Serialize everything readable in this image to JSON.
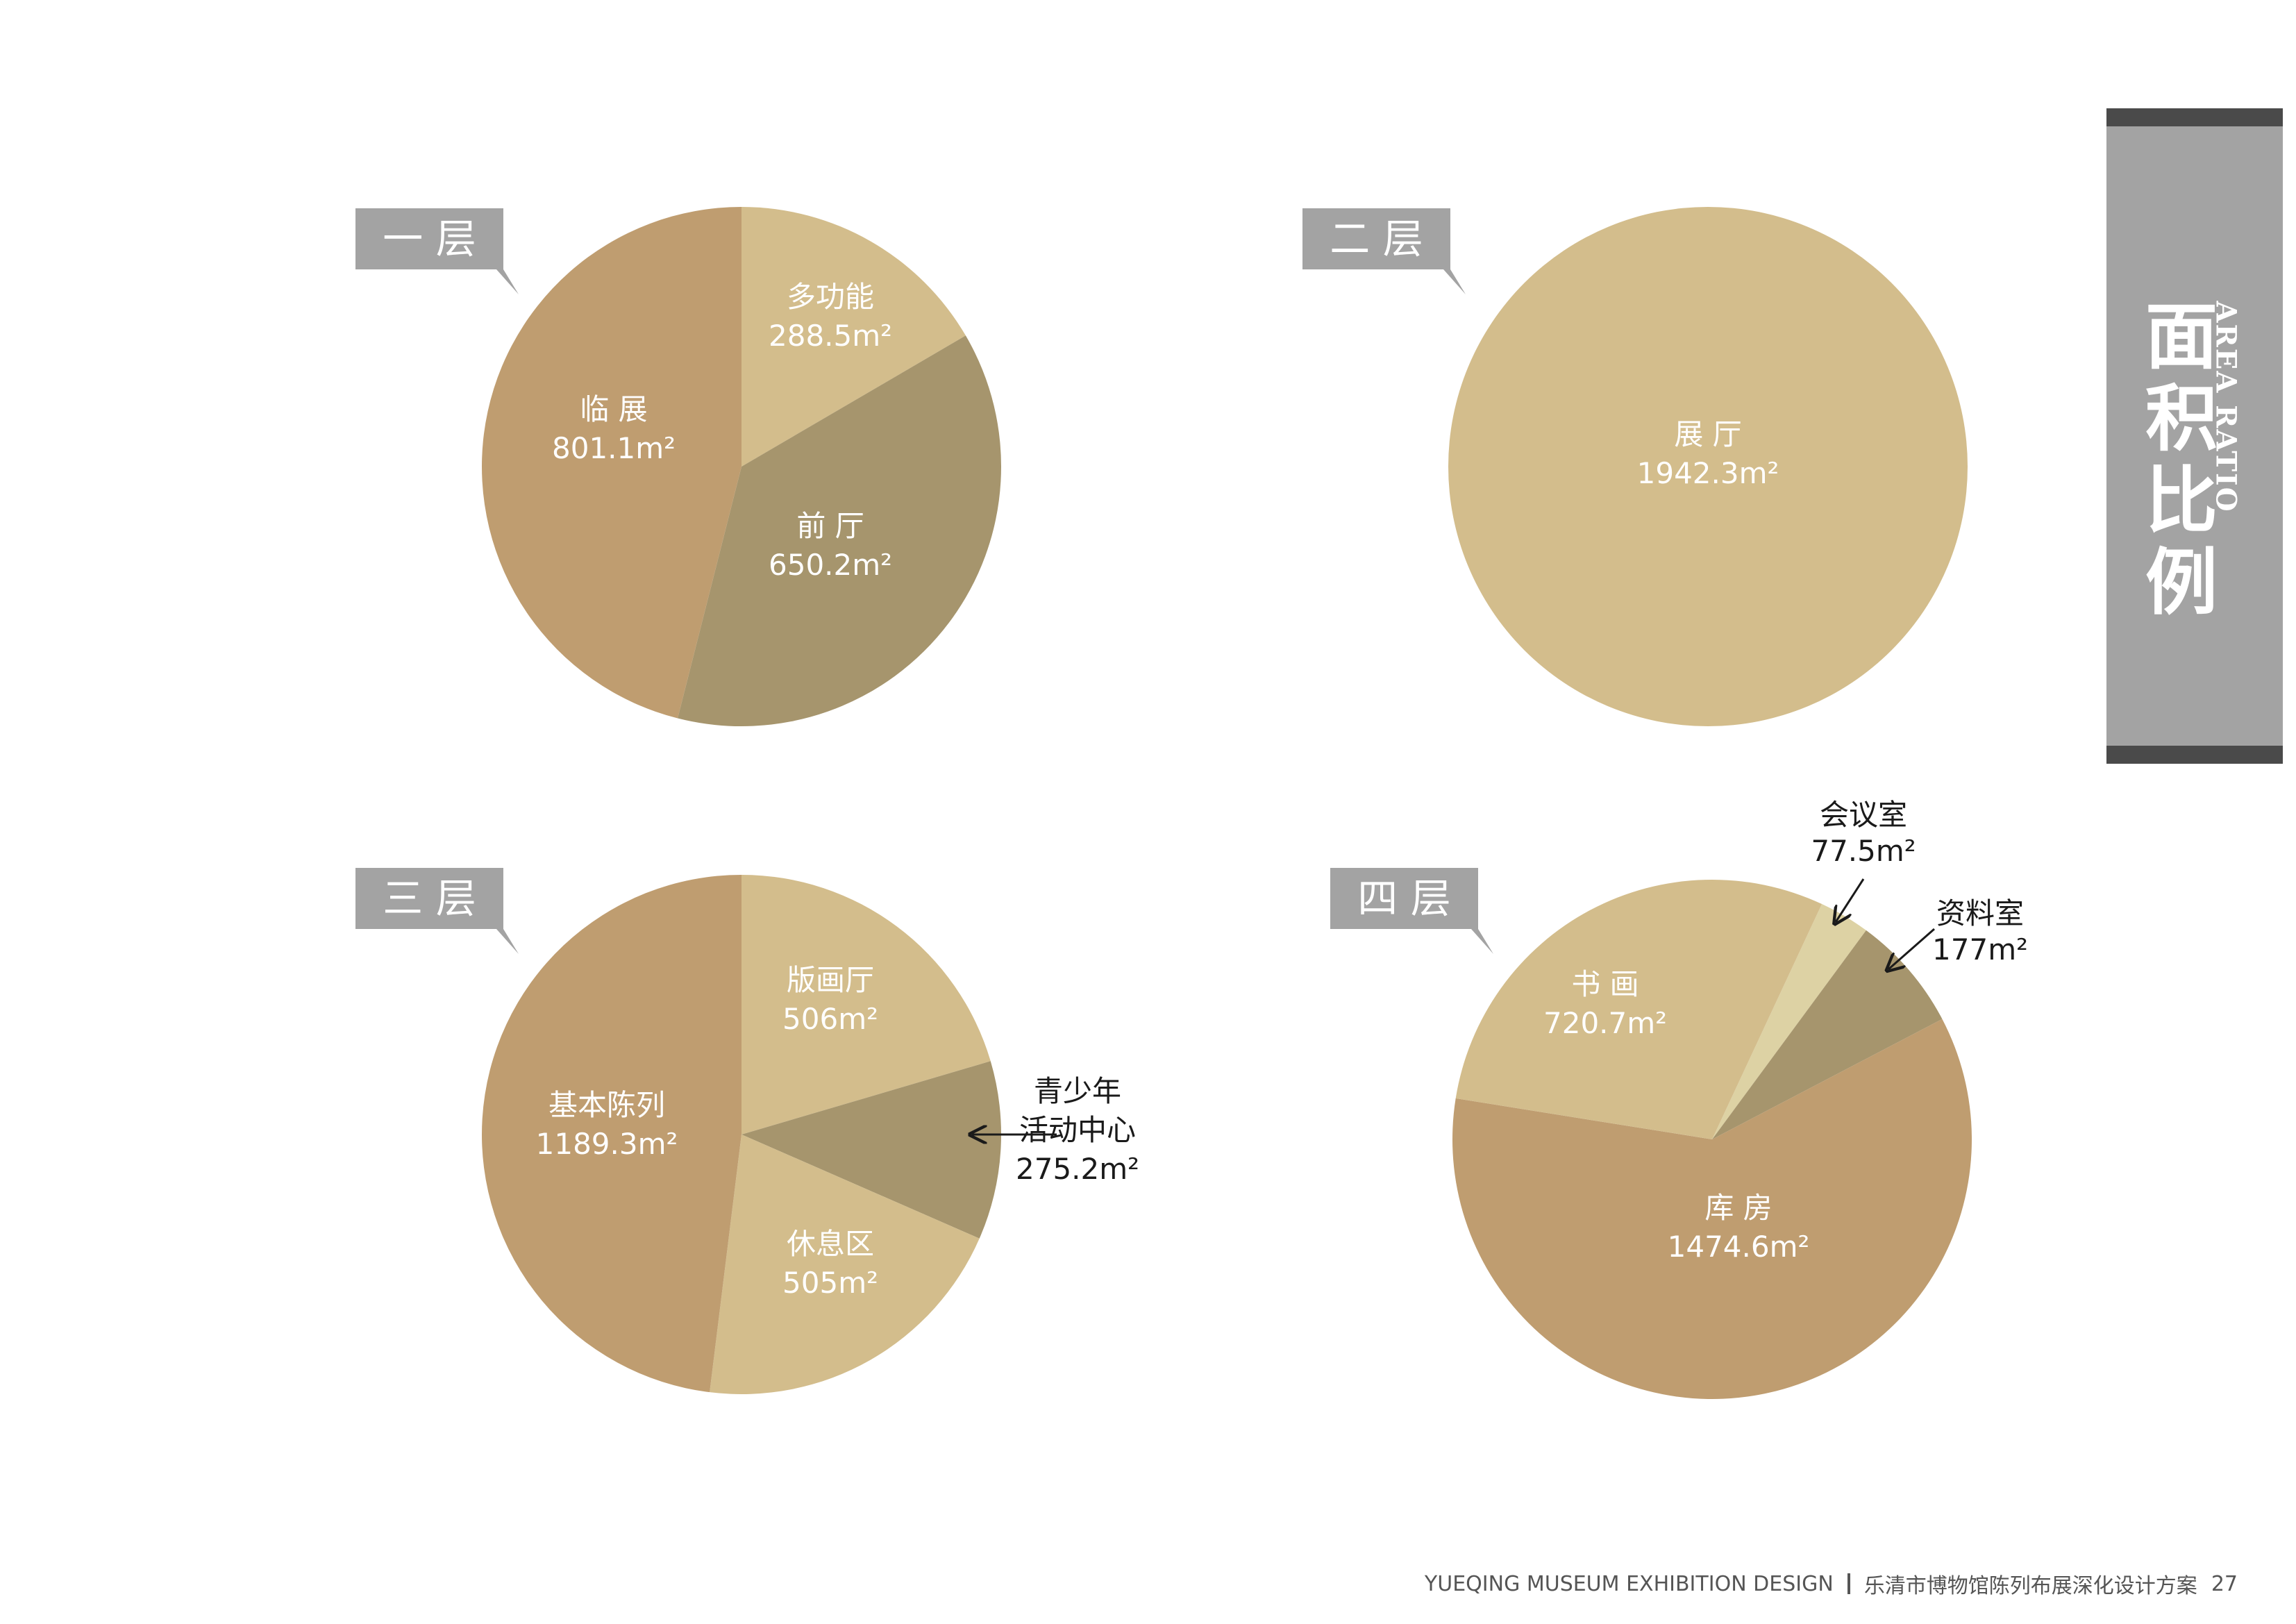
{
  "colors": {
    "light": "#d3bd8c",
    "mid": "#bf9d70",
    "dark": "#a6956d",
    "pale": "#ddd2a4",
    "tag": "#a3a3a3"
  },
  "side": {
    "title_chars": [
      "面",
      "积",
      "比",
      "例"
    ],
    "subtitle": "AREA RATIO"
  },
  "footer": {
    "en": "YUEQING MUSEUM EXHIBITION DESIGN",
    "cn": "乐清市博物馆陈列布展深化设计方案",
    "page": "27"
  },
  "chart_data": [
    {
      "type": "pie",
      "floor_label": "一 层",
      "slices": [
        {
          "name": "多功能",
          "value_text": "288.5m²",
          "value": 288.5,
          "color": "light"
        },
        {
          "name": "前 厅",
          "value_text": "650.2m²",
          "value": 650.2,
          "color": "dark"
        },
        {
          "name": "临 展",
          "value_text": "801.1m²",
          "value": 801.1,
          "color": "mid"
        }
      ]
    },
    {
      "type": "pie",
      "floor_label": "二 层",
      "slices": [
        {
          "name": "展 厅",
          "value_text": "1942.3m²",
          "value": 1942.3,
          "color": "light"
        }
      ]
    },
    {
      "type": "pie",
      "floor_label": "三 层",
      "slices": [
        {
          "name": "版画厅",
          "value_text": "506m²",
          "value": 506,
          "color": "light"
        },
        {
          "name": "青少年活动中心",
          "value_text": "275.2m²",
          "value": 275.2,
          "color": "dark",
          "outside_lines": [
            "青少年",
            "活动中心",
            "275.2m²"
          ]
        },
        {
          "name": "休息区",
          "value_text": "505m²",
          "value": 505,
          "color": "light"
        },
        {
          "name": "基本陈列",
          "value_text": "1189.3m²",
          "value": 1189.3,
          "color": "mid"
        }
      ]
    },
    {
      "type": "pie",
      "floor_label": "四 层",
      "slices": [
        {
          "name": "会议室",
          "value_text": "77.5m²",
          "value": 77.5,
          "color": "pale",
          "outside_lines": [
            "会议室",
            "77.5m²"
          ]
        },
        {
          "name": "资料室",
          "value_text": "177m²",
          "value": 177,
          "color": "dark",
          "outside_lines": [
            "资料室",
            "177m²"
          ]
        },
        {
          "name": "库 房",
          "value_text": "1474.6m²",
          "value": 1474.6,
          "color": "mid"
        },
        {
          "name": "书 画",
          "value_text": "720.7m²",
          "value": 720.7,
          "color": "light"
        }
      ]
    }
  ]
}
